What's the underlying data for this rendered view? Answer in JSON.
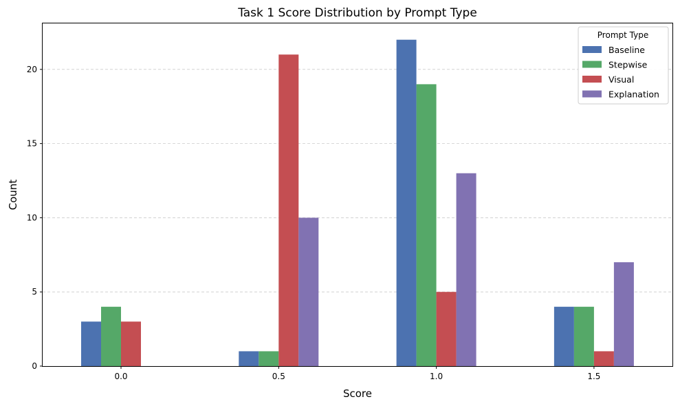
{
  "chart_data": {
    "type": "bar",
    "title": "Task 1 Score Distribution by Prompt Type",
    "xlabel": "Score",
    "ylabel": "Count",
    "categories": [
      "0.0",
      "0.5",
      "1.0",
      "1.5"
    ],
    "series": [
      {
        "name": "Baseline",
        "color": "#4c72b0",
        "values": [
          3,
          1,
          22,
          4
        ]
      },
      {
        "name": "Stepwise",
        "color": "#55a868",
        "values": [
          4,
          1,
          19,
          4
        ]
      },
      {
        "name": "Visual",
        "color": "#c44e52",
        "values": [
          3,
          21,
          5,
          1
        ]
      },
      {
        "name": "Explanation",
        "color": "#8172b2",
        "values": [
          0,
          10,
          13,
          7
        ]
      }
    ],
    "ylim": [
      0,
      23.1
    ],
    "yticks": [
      0,
      5,
      10,
      15,
      20
    ],
    "grid": "y-dashed",
    "legend": {
      "title": "Prompt Type",
      "placement": "top-right"
    }
  }
}
